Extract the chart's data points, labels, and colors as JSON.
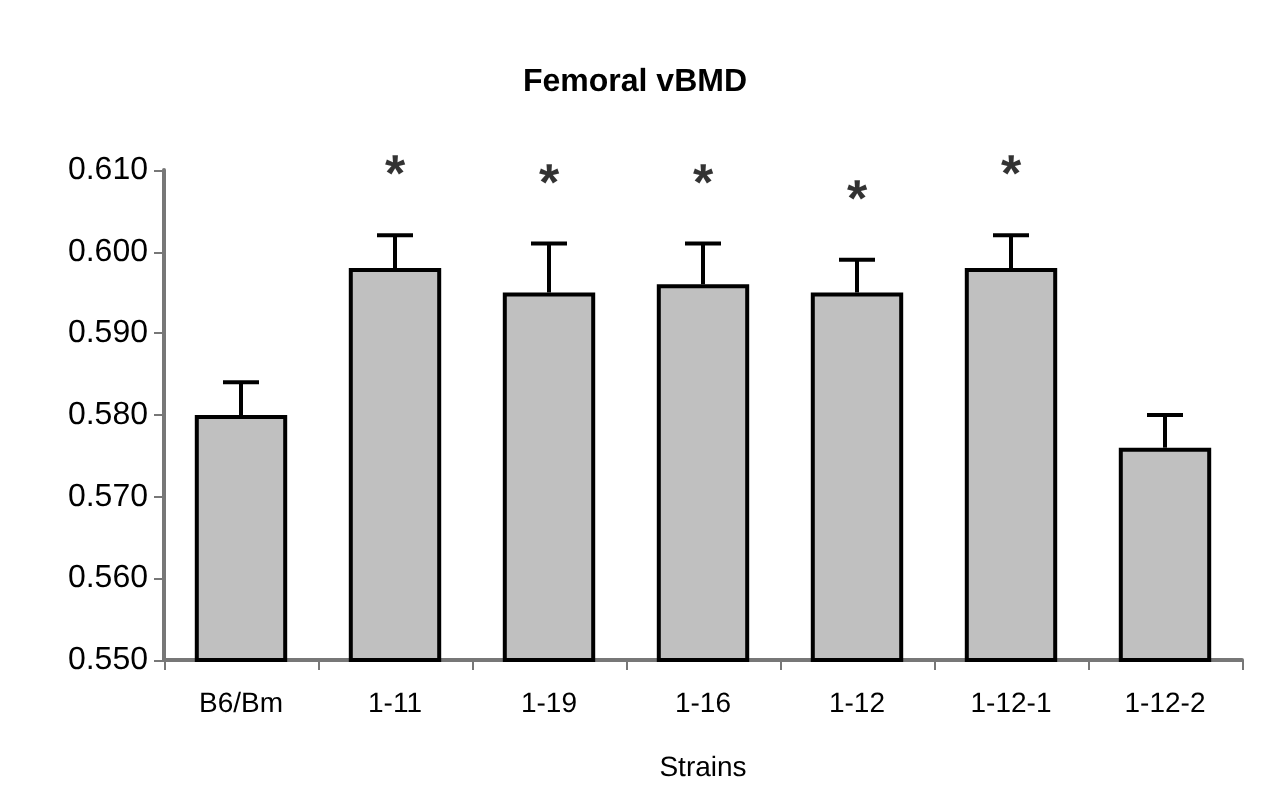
{
  "chart_data": {
    "type": "bar",
    "title": "Femoral vBMD",
    "xlabel": "Strains",
    "categories": [
      "B6/Bm",
      "1-11",
      "1-19",
      "1-16",
      "1-12",
      "1-12-1",
      "1-12-2"
    ],
    "values": [
      0.58,
      0.598,
      0.595,
      0.596,
      0.595,
      0.598,
      0.576
    ],
    "errors": [
      [
        0.58,
        0.584
      ],
      [
        0.598,
        0.602
      ],
      [
        0.595,
        0.601
      ],
      [
        0.596,
        0.601
      ],
      [
        0.595,
        0.599
      ],
      [
        0.598,
        0.602
      ],
      [
        0.576,
        0.58
      ]
    ],
    "color": "#c0c0c0",
    "ylim": [
      0.55,
      0.61
    ],
    "yticks": [
      {
        "value": 0.55,
        "label": "0.550"
      },
      {
        "value": 0.56,
        "label": "0.560"
      },
      {
        "value": 0.57,
        "label": "0.570"
      },
      {
        "value": 0.58,
        "label": "0.580"
      },
      {
        "value": 0.59,
        "label": "0.590"
      },
      {
        "value": 0.6,
        "label": "0.600"
      },
      {
        "value": 0.61,
        "label": "0.610"
      }
    ],
    "annotations": [
      {
        "text": "*",
        "x": "1-11",
        "y": 0.602
      },
      {
        "text": "*",
        "x": "1-19",
        "y": 0.601
      },
      {
        "text": "*",
        "x": "1-16",
        "y": 0.601
      },
      {
        "text": "*",
        "x": "1-12",
        "y": 0.599
      },
      {
        "text": "*",
        "x": "1-12-1",
        "y": 0.602
      }
    ]
  }
}
